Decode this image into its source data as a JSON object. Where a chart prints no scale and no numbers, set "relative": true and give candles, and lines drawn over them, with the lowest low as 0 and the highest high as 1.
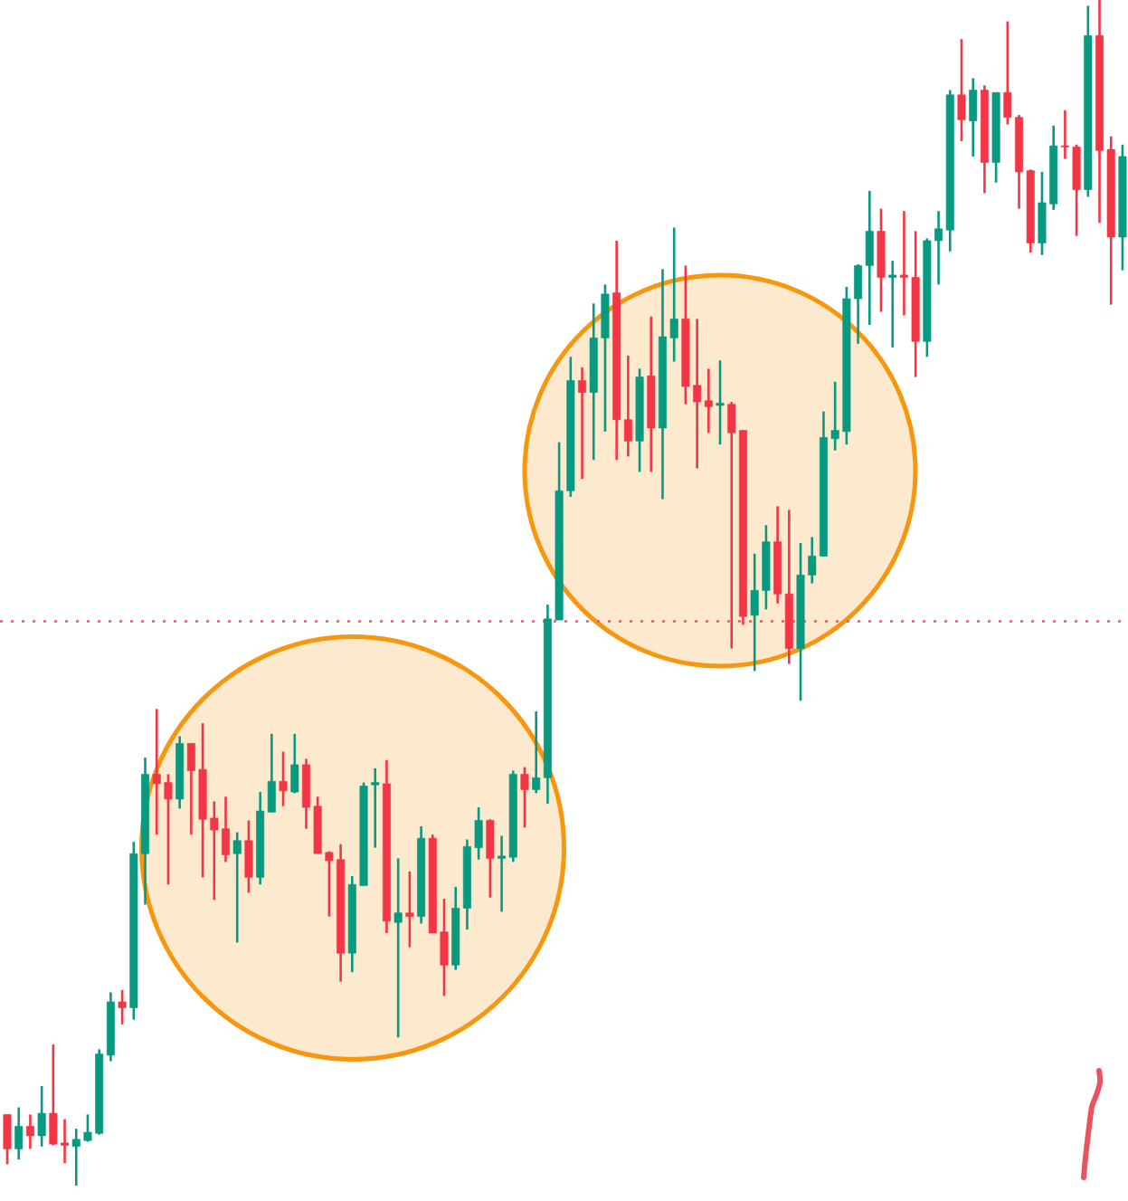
{
  "chart_data": {
    "type": "candlestick",
    "relative": true,
    "categories": [
      null,
      null,
      null,
      null,
      null,
      null,
      null,
      null,
      null,
      null,
      null,
      null,
      null,
      null,
      null,
      null,
      null,
      null,
      null,
      null,
      null,
      null,
      null,
      null,
      null,
      null,
      null,
      null,
      null,
      null,
      null,
      null,
      null,
      null,
      null,
      null,
      null,
      null,
      null,
      null,
      null,
      null,
      null,
      null,
      null,
      null,
      null,
      null,
      null,
      null,
      null,
      null,
      null,
      null,
      null,
      null,
      null,
      null,
      null,
      null,
      null,
      null,
      null,
      null,
      null,
      null,
      null,
      null,
      null,
      null,
      null,
      null,
      null,
      null,
      null,
      null,
      null,
      null,
      null,
      null,
      null,
      null,
      null,
      null,
      null,
      null,
      null,
      null,
      null,
      null,
      null,
      null,
      null,
      null,
      null,
      null,
      null,
      null
    ],
    "ohlc": [
      [
        0.06,
        0.06,
        0.018,
        0.031
      ],
      [
        0.031,
        0.066,
        0.022,
        0.05
      ],
      [
        0.05,
        0.06,
        0.031,
        0.042
      ],
      [
        0.042,
        0.084,
        0.033,
        0.061
      ],
      [
        0.061,
        0.119,
        0.034,
        0.035
      ],
      [
        0.036,
        0.056,
        0.019,
        0.034
      ],
      [
        0.033,
        0.048,
        0,
        0.039
      ],
      [
        0.038,
        0.06,
        0.037,
        0.045
      ],
      [
        0.044,
        0.115,
        0.043,
        0.111
      ],
      [
        0.11,
        0.163,
        0.105,
        0.155
      ],
      [
        0.155,
        0.165,
        0.136,
        0.15
      ],
      [
        0.15,
        0.29,
        0.14,
        0.28
      ],
      [
        0.28,
        0.361,
        0.237,
        0.347
      ],
      [
        0.347,
        0.402,
        0.296,
        0.339
      ],
      [
        0.34,
        0.347,
        0.254,
        0.326
      ],
      [
        0.326,
        0.379,
        0.318,
        0.373
      ],
      [
        0.373,
        0.373,
        0.296,
        0.35
      ],
      [
        0.351,
        0.39,
        0.26,
        0.309
      ],
      [
        0.31,
        0.324,
        0.241,
        0.3
      ],
      [
        0.301,
        0.328,
        0.273,
        0.279
      ],
      [
        0.28,
        0.298,
        0.205,
        0.291
      ],
      [
        0.291,
        0.308,
        0.247,
        0.26
      ],
      [
        0.26,
        0.332,
        0.254,
        0.316
      ],
      [
        0.315,
        0.381,
        0.315,
        0.341
      ],
      [
        0.341,
        0.366,
        0.32,
        0.333
      ],
      [
        0.332,
        0.381,
        0.331,
        0.355
      ],
      [
        0.355,
        0.36,
        0.301,
        0.319
      ],
      [
        0.32,
        0.328,
        0.28,
        0.28
      ],
      [
        0.281,
        0.282,
        0.227,
        0.274
      ],
      [
        0.275,
        0.288,
        0.172,
        0.196
      ],
      [
        0.196,
        0.261,
        0.18,
        0.254
      ],
      [
        0.253,
        0.34,
        0.253,
        0.337
      ],
      [
        0.338,
        0.352,
        0.285,
        0.34
      ],
      [
        0.339,
        0.359,
        0.213,
        0.223
      ],
      [
        0.222,
        0.276,
        0.125,
        0.23
      ],
      [
        0.23,
        0.265,
        0.201,
        0.227
      ],
      [
        0.227,
        0.303,
        0.221,
        0.293
      ],
      [
        0.293,
        0.296,
        0.213,
        0.213
      ],
      [
        0.214,
        0.242,
        0.16,
        0.186
      ],
      [
        0.186,
        0.252,
        0.182,
        0.234
      ],
      [
        0.234,
        0.292,
        0.216,
        0.286
      ],
      [
        0.285,
        0.319,
        0.275,
        0.308
      ],
      [
        0.308,
        0.309,
        0.243,
        0.276
      ],
      [
        0.276,
        0.295,
        0.231,
        0.278
      ],
      [
        0.277,
        0.35,
        0.273,
        0.347
      ],
      [
        0.347,
        0.353,
        0.302,
        0.334
      ],
      [
        0.334,
        0.4,
        0.331,
        0.344
      ],
      [
        0.344,
        0.49,
        0.322,
        0.478
      ],
      [
        0.477,
        0.627,
        0.477,
        0.586
      ],
      [
        0.586,
        0.699,
        0.581,
        0.679
      ],
      [
        0.679,
        0.69,
        0.596,
        0.669
      ],
      [
        0.669,
        0.744,
        0.612,
        0.715
      ],
      [
        0.715,
        0.76,
        0.636,
        0.752
      ],
      [
        0.753,
        0.797,
        0.612,
        0.646
      ],
      [
        0.646,
        0.7,
        0.615,
        0.628
      ],
      [
        0.628,
        0.689,
        0.602,
        0.682
      ],
      [
        0.683,
        0.733,
        0.602,
        0.639
      ],
      [
        0.639,
        0.773,
        0.579,
        0.716
      ],
      [
        0.715,
        0.808,
        0.695,
        0.731
      ],
      [
        0.731,
        0.776,
        0.659,
        0.674
      ],
      [
        0.675,
        0.731,
        0.605,
        0.661
      ],
      [
        0.662,
        0.689,
        0.635,
        0.657
      ],
      [
        0.658,
        0.696,
        0.625,
        0.66
      ],
      [
        0.659,
        0.661,
        0.453,
        0.635
      ],
      [
        0.637,
        0.637,
        0.473,
        0.48
      ],
      [
        0.481,
        0.533,
        0.434,
        0.502
      ],
      [
        0.502,
        0.557,
        0.486,
        0.543
      ],
      [
        0.543,
        0.573,
        0.491,
        0.499
      ],
      [
        0.499,
        0.57,
        0.44,
        0.453
      ],
      [
        0.453,
        0.542,
        0.409,
        0.515
      ],
      [
        0.515,
        0.547,
        0.508,
        0.531
      ],
      [
        0.531,
        0.653,
        0.531,
        0.631
      ],
      [
        0.63,
        0.678,
        0.62,
        0.637
      ],
      [
        0.636,
        0.758,
        0.625,
        0.748
      ],
      [
        0.748,
        0.777,
        0.71,
        0.776
      ],
      [
        0.776,
        0.839,
        0.726,
        0.805
      ],
      [
        0.805,
        0.824,
        0.737,
        0.766
      ],
      [
        0.766,
        0.78,
        0.707,
        0.768
      ],
      [
        0.768,
        0.822,
        0.734,
        0.766
      ],
      [
        0.766,
        0.805,
        0.682,
        0.712
      ],
      [
        0.712,
        0.799,
        0.699,
        0.797
      ],
      [
        0.797,
        0.822,
        0.76,
        0.807
      ],
      [
        0.806,
        0.924,
        0.788,
        0.92
      ],
      [
        0.92,
        0.967,
        0.881,
        0.899
      ],
      [
        0.898,
        0.934,
        0.868,
        0.924
      ],
      [
        0.924,
        0.928,
        0.837,
        0.863
      ],
      [
        0.863,
        0.922,
        0.846,
        0.922
      ],
      [
        0.922,
        0.982,
        0.895,
        0.901
      ],
      [
        0.901,
        0.903,
        0.824,
        0.855
      ],
      [
        0.856,
        0.857,
        0.787,
        0.795
      ],
      [
        0.795,
        0.855,
        0.785,
        0.829
      ],
      [
        0.828,
        0.894,
        0.823,
        0.877
      ],
      [
        0.877,
        0.907,
        0.866,
        0.876
      ],
      [
        0.876,
        0.878,
        0.801,
        0.84
      ],
      [
        0.84,
        0.995,
        0.834,
        0.97
      ],
      [
        0.97,
        1,
        0.812,
        0.873
      ],
      [
        0.874,
        0.885,
        0.743,
        0.8
      ],
      [
        0.8,
        0.878,
        0.772,
        0.868
      ]
    ],
    "colors": [
      "#f23645",
      "#089981",
      "#f23645",
      "#089981",
      "#f23645",
      "#f23645",
      "#089981",
      "#089981",
      "#089981",
      "#089981",
      "#f23645",
      "#089981",
      "#089981",
      "#f23645",
      "#f23645",
      "#089981",
      "#f23645",
      "#f23645",
      "#f23645",
      "#f23645",
      "#089981",
      "#f23645",
      "#089981",
      "#089981",
      "#f23645",
      "#089981",
      "#f23645",
      "#f23645",
      "#f23645",
      "#f23645",
      "#089981",
      "#089981",
      "#089981",
      "#f23645",
      "#089981",
      "#f23645",
      "#089981",
      "#f23645",
      "#f23645",
      "#089981",
      "#089981",
      "#089981",
      "#f23645",
      "#089981",
      "#089981",
      "#f23645",
      "#089981",
      "#089981",
      "#089981",
      "#089981",
      "#f23645",
      "#089981",
      "#089981",
      "#f23645",
      "#f23645",
      "#089981",
      "#f23645",
      "#089981",
      "#089981",
      "#f23645",
      "#f23645",
      "#f23645",
      "#089981",
      "#f23645",
      "#f23645",
      "#089981",
      "#089981",
      "#f23645",
      "#f23645",
      "#089981",
      "#089981",
      "#089981",
      "#089981",
      "#089981",
      "#089981",
      "#089981",
      "#f23645",
      "#089981",
      "#f23645",
      "#f23645",
      "#089981",
      "#089981",
      "#089981",
      "#f23645",
      "#089981",
      "#f23645",
      "#089981",
      "#f23645",
      "#f23645",
      "#f23645",
      "#089981",
      "#089981",
      "#f23645",
      "#f23645",
      "#089981",
      "#f23645",
      "#f23645",
      "#089981"
    ],
    "ref_lines": [
      {
        "axis": "y",
        "value": 0.476,
        "color": "#e35d6a",
        "line_style": "dotted"
      }
    ]
  }
}
